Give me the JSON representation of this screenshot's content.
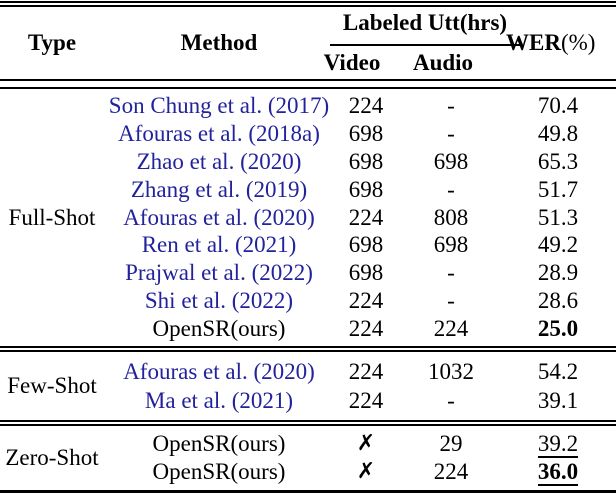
{
  "colors": {
    "citation_blue": "#22229C",
    "text_black": "#000000",
    "background": "#FFFFFF"
  },
  "header": {
    "type_label": "Type",
    "method_label": "Method",
    "group_label": "Labeled Utt(hrs)",
    "video_label": "Video",
    "audio_label": "Audio",
    "wer_label": "WER",
    "wer_unit": "(%)"
  },
  "icons": {
    "cross_mark": "✗"
  },
  "sections": [
    {
      "type_label": "Full-Shot",
      "rows": [
        {
          "method": "Son Chung et al. (2017)",
          "method_is_link": true,
          "video": "224",
          "video_is_cross": false,
          "audio": "-",
          "wer": "70.4",
          "wer_bold": false,
          "wer_underline": false
        },
        {
          "method": "Afouras et al. (2018a)",
          "method_is_link": true,
          "video": "698",
          "video_is_cross": false,
          "audio": "-",
          "wer": "49.8",
          "wer_bold": false,
          "wer_underline": false
        },
        {
          "method": "Zhao et al. (2020)",
          "method_is_link": true,
          "video": "698",
          "video_is_cross": false,
          "audio": "698",
          "wer": "65.3",
          "wer_bold": false,
          "wer_underline": false
        },
        {
          "method": "Zhang et al. (2019)",
          "method_is_link": true,
          "video": "698",
          "video_is_cross": false,
          "audio": "-",
          "wer": "51.7",
          "wer_bold": false,
          "wer_underline": false
        },
        {
          "method": "Afouras et al. (2020)",
          "method_is_link": true,
          "video": "224",
          "video_is_cross": false,
          "audio": "808",
          "wer": "51.3",
          "wer_bold": false,
          "wer_underline": false
        },
        {
          "method": "Ren et al. (2021)",
          "method_is_link": true,
          "video": "698",
          "video_is_cross": false,
          "audio": "698",
          "wer": "49.2",
          "wer_bold": false,
          "wer_underline": false
        },
        {
          "method": "Prajwal et al. (2022)",
          "method_is_link": true,
          "video": "698",
          "video_is_cross": false,
          "audio": "-",
          "wer": "28.9",
          "wer_bold": false,
          "wer_underline": false
        },
        {
          "method": "Shi et al. (2022)",
          "method_is_link": true,
          "video": "224",
          "video_is_cross": false,
          "audio": "-",
          "wer": "28.6",
          "wer_bold": false,
          "wer_underline": false
        },
        {
          "method": "OpenSR(ours)",
          "method_is_link": false,
          "video": "224",
          "video_is_cross": false,
          "audio": "224",
          "wer": "25.0",
          "wer_bold": true,
          "wer_underline": false
        }
      ]
    },
    {
      "type_label": "Few-Shot",
      "rows": [
        {
          "method": "Afouras et al. (2020)",
          "method_is_link": true,
          "video": "224",
          "video_is_cross": false,
          "audio": "1032",
          "wer": "54.2",
          "wer_bold": false,
          "wer_underline": false
        },
        {
          "method": "Ma et al. (2021)",
          "method_is_link": true,
          "video": "224",
          "video_is_cross": false,
          "audio": "-",
          "wer": "39.1",
          "wer_bold": false,
          "wer_underline": false
        }
      ]
    },
    {
      "type_label": "Zero-Shot",
      "rows": [
        {
          "method": "OpenSR(ours)",
          "method_is_link": false,
          "video": "✗",
          "video_is_cross": true,
          "audio": "29",
          "wer": "39.2",
          "wer_bold": false,
          "wer_underline": true
        },
        {
          "method": "OpenSR(ours)",
          "method_is_link": false,
          "video": "✗",
          "video_is_cross": true,
          "audio": "224",
          "wer": "36.0",
          "wer_bold": true,
          "wer_underline": true
        }
      ]
    }
  ]
}
